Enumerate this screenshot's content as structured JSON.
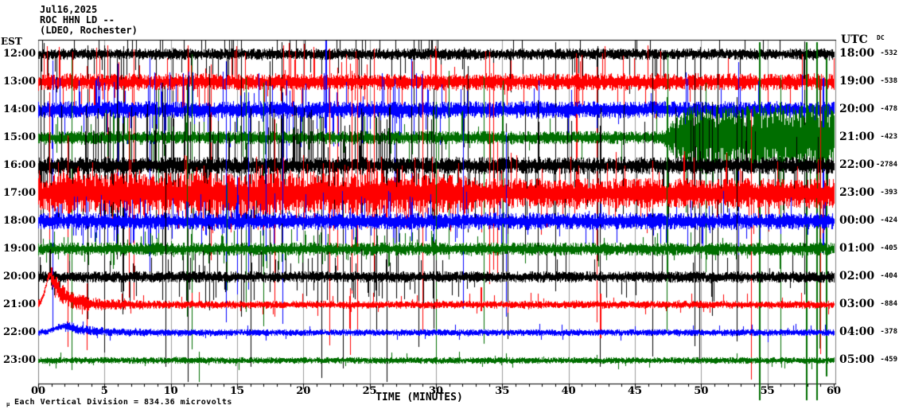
{
  "title": {
    "date": "Jul16,2025",
    "station": "ROC HHN LD --",
    "operator": "(LDEO, Rochester)"
  },
  "axes": {
    "left_header": "EST",
    "right_header": "UTC",
    "dc_header": "DC",
    "x_label": "TIME (MINUTES)",
    "footer_glyph": "μ",
    "footer_note": "Each Vertical Division = 834.36 microvolts",
    "x_ticks": [
      {
        "m": 0,
        "label": "00"
      },
      {
        "m": 5,
        "label": "5"
      },
      {
        "m": 10,
        "label": "10"
      },
      {
        "m": 15,
        "label": "15"
      },
      {
        "m": 20,
        "label": "20"
      },
      {
        "m": 25,
        "label": "25"
      },
      {
        "m": 30,
        "label": "30"
      },
      {
        "m": 35,
        "label": "35"
      },
      {
        "m": 40,
        "label": "40"
      },
      {
        "m": 45,
        "label": "45"
      },
      {
        "m": 50,
        "label": "50"
      },
      {
        "m": 55,
        "label": "55"
      },
      {
        "m": 60,
        "label": "60"
      }
    ]
  },
  "colors": {
    "background": "#ffffff",
    "frame": "#808080",
    "grid": "#9b9b9b",
    "axis": "#000000",
    "black_trace": "#000000",
    "red_trace": "#ff0000",
    "blue_trace": "#0000ff",
    "green_trace": "#006e00"
  },
  "chart_data": {
    "type": "line",
    "description": "Helicorder seismogram, 12 one-hour rows, 60 minutes per row, heavy broadband noise 0-30 min, large green event bursts 54-60 min, red local event at start of 21:00 EST row",
    "x_min": 0,
    "x_max": 60,
    "x_major": 5,
    "x_minor": 1,
    "grid": "vertical 5-minute gray lines",
    "rows": [
      {
        "est": "12:00",
        "utc": "18:00",
        "dc": "-532",
        "color": "#000000",
        "seed": 101,
        "base": 6,
        "spike_prob": 0.1,
        "spike_amp": 45,
        "tall_prob": 0.013,
        "tall_up": 12,
        "tall_down": 380,
        "env": [],
        "explicit": []
      },
      {
        "est": "13:00",
        "utc": "19:00",
        "dc": "-538",
        "color": "#ff0000",
        "seed": 202,
        "base": 9,
        "spike_prob": 0.1,
        "spike_amp": 40,
        "tall_prob": 0.007,
        "tall_up": 40,
        "tall_down": 300,
        "env": [],
        "explicit": [
          {
            "min": 40.6,
            "up": 30,
            "down": 160
          }
        ]
      },
      {
        "est": "14:00",
        "utc": "20:00",
        "dc": "-478",
        "color": "#0000ff",
        "seed": 303,
        "base": 9,
        "spike_prob": 0.1,
        "spike_amp": 40,
        "tall_prob": 0.007,
        "tall_up": 70,
        "tall_down": 280,
        "env": [],
        "explicit": [
          {
            "min": 21.7,
            "up": 90,
            "down": 30
          },
          {
            "min": 52.8,
            "up": 60,
            "down": 200
          },
          {
            "min": 59.2,
            "up": 40,
            "down": 180
          }
        ]
      },
      {
        "est": "15:00",
        "utc": "21:00",
        "dc": "-423",
        "color": "#006e00",
        "seed": 404,
        "base": 7,
        "spike_prob": 0.08,
        "spike_amp": 30,
        "tall_prob": 0.005,
        "tall_up": 100,
        "tall_down": 300,
        "env": [
          {
            "from": 47,
            "to": 60,
            "mult": 5
          }
        ],
        "env_tall_prob": 0.06,
        "env_tall_up": 110,
        "env_tall_down": 260,
        "explicit": [
          {
            "min": 54.4,
            "up": 120,
            "down": 330
          },
          {
            "min": 57.9,
            "up": 120,
            "down": 330
          },
          {
            "min": 58.7,
            "up": 120,
            "down": 330
          },
          {
            "min": 59.4,
            "up": 100,
            "down": 300
          }
        ]
      },
      {
        "est": "16:00",
        "utc": "22:00",
        "dc": "-2784",
        "color": "#000000",
        "seed": 505,
        "base": 9,
        "spike_prob": 0.22,
        "spike_amp": 70,
        "tall_prob": 0.02,
        "tall_up": 140,
        "tall_down": 270,
        "env": [],
        "explicit": []
      },
      {
        "est": "17:00",
        "utc": "23:00",
        "dc": "-393",
        "color": "#ff0000",
        "seed": 606,
        "base": 16,
        "spike_prob": 0.18,
        "spike_amp": 40,
        "tall_prob": 0.008,
        "tall_up": 170,
        "tall_down": 230,
        "env": [
          {
            "from": 0,
            "to": 33,
            "mult": 1.35
          }
        ],
        "explicit": []
      },
      {
        "est": "18:00",
        "utc": "00:00",
        "dc": "-424",
        "color": "#0000ff",
        "seed": 707,
        "base": 9,
        "spike_prob": 0.12,
        "spike_amp": 30,
        "tall_prob": 0.006,
        "tall_up": 200,
        "tall_down": 180,
        "env": [],
        "explicit": []
      },
      {
        "est": "19:00",
        "utc": "01:00",
        "dc": "-405",
        "color": "#006e00",
        "seed": 808,
        "base": 7,
        "spike_prob": 0.08,
        "spike_amp": 20,
        "tall_prob": 0.004,
        "tall_up": 240,
        "tall_down": 160,
        "env": [],
        "explicit": []
      },
      {
        "est": "20:00",
        "utc": "02:00",
        "dc": "-404",
        "color": "#000000",
        "seed": 909,
        "base": 6,
        "spike_prob": 0.1,
        "spike_amp": 30,
        "tall_prob": 0.006,
        "tall_up": 270,
        "tall_down": 130,
        "env": [],
        "explicit": []
      },
      {
        "est": "21:00",
        "utc": "03:00",
        "dc": "-884",
        "color": "#ff0000",
        "seed": 111,
        "base": 4,
        "spike_prob": 0.04,
        "spike_amp": 12,
        "tall_prob": 0.0015,
        "tall_up": 30,
        "tall_down": 60,
        "event": {
          "center": 0.9,
          "amp": 38,
          "sigma": 0.35,
          "tail": 0.9,
          "noise_boost": 2.2
        },
        "env": [],
        "explicit": [
          {
            "min": 33.4,
            "up": 22,
            "down": 8
          },
          {
            "min": 42.4,
            "up": 14,
            "down": 42
          }
        ]
      },
      {
        "est": "22:00",
        "utc": "04:00",
        "dc": "-378",
        "color": "#0000ff",
        "seed": 222,
        "base": 3.5,
        "spike_prob": 0.03,
        "spike_amp": 9,
        "tall_prob": 0.001,
        "tall_up": 20,
        "tall_down": 30,
        "event": {
          "center": 2.0,
          "amp": 8,
          "sigma": 0.8,
          "tail": 1.5,
          "noise_boost": 0.8
        },
        "env": [],
        "explicit": []
      },
      {
        "est": "23:00",
        "utc": "05:00",
        "dc": "-459",
        "color": "#006e00",
        "seed": 333,
        "base": 3.5,
        "spike_prob": 0.03,
        "spike_amp": 9,
        "tall_prob": 0.001,
        "tall_up": 15,
        "tall_down": 40,
        "env": [],
        "explicit": []
      }
    ]
  }
}
